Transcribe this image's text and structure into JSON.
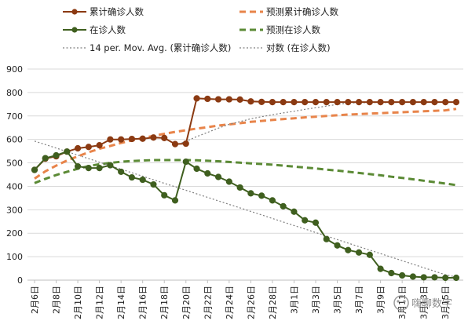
{
  "chart_data": {
    "type": "line",
    "title": "",
    "xlabel": "",
    "ylabel": "",
    "ylim": [
      0,
      900
    ],
    "yticks": [
      0,
      100,
      200,
      300,
      400,
      500,
      600,
      700,
      800,
      900
    ],
    "grid": true,
    "legend_position": "top",
    "x_labels": [
      "2月6日",
      "2月8日",
      "2月10日",
      "2月12日",
      "2月14日",
      "2月16日",
      "2月18日",
      "2月20日",
      "2月22日",
      "2月24日",
      "2月26日",
      "2月28日",
      "3月1日",
      "3月3日",
      "3月5日",
      "3月7日",
      "3月9日",
      "3月11日",
      "3月13日",
      "3月15日"
    ],
    "x_label_positions": [
      0,
      2,
      4,
      6,
      8,
      10,
      12,
      14,
      16,
      18,
      20,
      22,
      24,
      26,
      28,
      30,
      32,
      34,
      36,
      38
    ],
    "watermark": "嗨聊数字",
    "series": [
      {
        "name": "累计确诊人数",
        "kind": "line-markers",
        "color": "#8B3A12",
        "values": [
          470,
          518,
          528,
          548,
          562,
          568,
          575,
          600,
          600,
          602,
          603,
          608,
          606,
          580,
          582,
          775,
          773,
          771,
          771,
          770,
          762,
          760,
          759,
          759,
          759,
          759,
          759,
          759,
          759,
          759,
          759,
          759,
          759,
          759,
          759,
          759,
          759,
          759,
          759,
          759
        ]
      },
      {
        "name": "预测累计确诊人数",
        "kind": "dashed",
        "color": "#E8844A",
        "values": [
          433,
          464,
          488,
          510,
          528,
          545,
          560,
          572,
          585,
          596,
          606,
          615,
          624,
          632,
          639,
          646,
          652,
          659,
          664,
          669,
          675,
          679,
          683,
          687,
          690,
          694,
          697,
          700,
          703,
          706,
          708,
          710,
          712,
          714,
          716,
          718,
          720,
          722,
          724,
          730
        ]
      },
      {
        "name": "在诊人数",
        "kind": "line-markers",
        "color": "#3F5F1F",
        "values": [
          470,
          520,
          532,
          548,
          485,
          478,
          478,
          490,
          462,
          438,
          428,
          408,
          362,
          340,
          505,
          475,
          455,
          440,
          420,
          395,
          370,
          360,
          340,
          315,
          292,
          255,
          245,
          175,
          148,
          128,
          118,
          108,
          48,
          30,
          20,
          15,
          12,
          12,
          10,
          10
        ]
      },
      {
        "name": "预测在诊人数",
        "kind": "dashed",
        "color": "#5B8A35",
        "values": [
          414,
          432,
          448,
          462,
          475,
          486,
          494,
          500,
          505,
          508,
          510,
          512,
          512,
          512,
          512,
          511,
          509,
          507,
          504,
          501,
          498,
          495,
          492,
          488,
          484,
          480,
          476,
          471,
          467,
          462,
          457,
          452,
          447,
          441,
          436,
          430,
          424,
          418,
          412,
          405
        ]
      },
      {
        "name": "14 per. Mov. Avg. (累计确诊人数)",
        "kind": "dotted",
        "color": "#7F7F7F",
        "values": [
          null,
          null,
          null,
          null,
          null,
          null,
          null,
          null,
          null,
          null,
          null,
          null,
          null,
          575,
          592,
          612,
          630,
          648,
          664,
          676,
          688,
          697,
          705,
          713,
          720,
          728,
          735,
          742,
          749,
          755,
          756,
          757,
          757,
          757,
          758,
          758,
          758,
          758,
          758,
          758
        ]
      },
      {
        "name": "对数 (在诊人数)",
        "kind": "dotted",
        "color": "#7F7F7F",
        "values": [
          593,
          578,
          563,
          548,
          533,
          518,
          503,
          488,
          473,
          458,
          443,
          428,
          413,
          398,
          383,
          368,
          353,
          338,
          323,
          308,
          293,
          278,
          263,
          248,
          233,
          218,
          203,
          188,
          173,
          158,
          143,
          128,
          113,
          98,
          83,
          68,
          53,
          38,
          23,
          13
        ]
      }
    ]
  }
}
